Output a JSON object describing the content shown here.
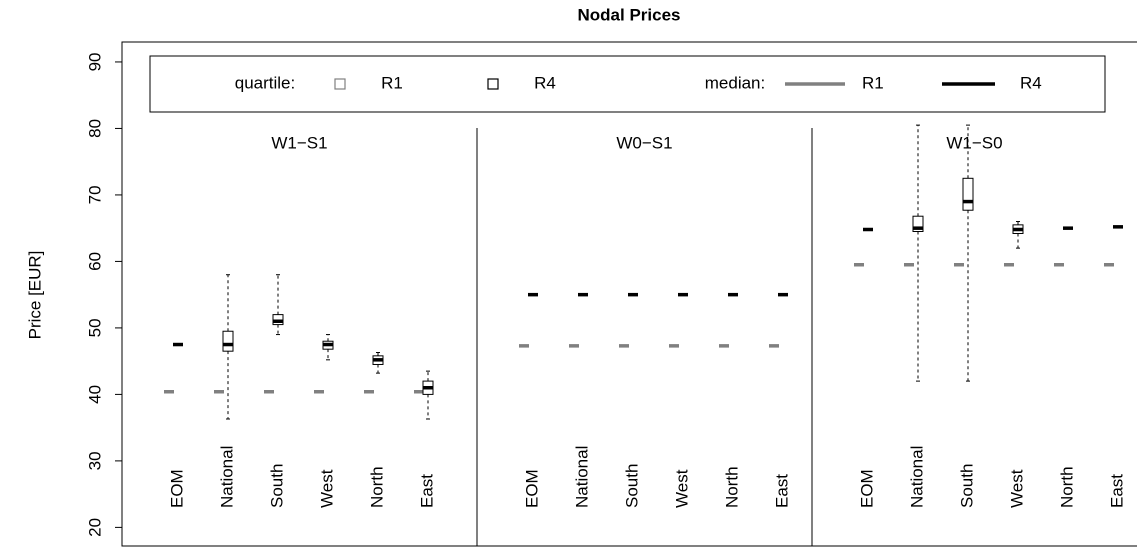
{
  "chart_data": {
    "type": "box",
    "title": "Nodal Prices",
    "ylabel": "Price [EUR]",
    "ylim": [
      17.2,
      93
    ],
    "yticks": [
      20,
      30,
      40,
      50,
      60,
      70,
      80,
      90
    ],
    "legend": {
      "quartile": "quartile:",
      "median": "median:"
    },
    "categories": [
      "EOM",
      "National",
      "South",
      "West",
      "North",
      "East"
    ],
    "series": [
      {
        "name": "R1",
        "color": "#808080"
      },
      {
        "name": "R4",
        "color": "#000000"
      }
    ],
    "panels": [
      {
        "title": "W1−S1",
        "data": [
          [
            {
              "min": 40.4,
              "q1": 40.4,
              "median": 40.4,
              "q3": 40.4,
              "max": 40.4
            },
            {
              "min": 40.4,
              "q1": 40.4,
              "median": 40.4,
              "q3": 40.4,
              "max": 40.4
            },
            {
              "min": 40.4,
              "q1": 40.4,
              "median": 40.4,
              "q3": 40.4,
              "max": 40.4
            },
            {
              "min": 40.4,
              "q1": 40.4,
              "median": 40.4,
              "q3": 40.4,
              "max": 40.4
            },
            {
              "min": 40.4,
              "q1": 40.4,
              "median": 40.4,
              "q3": 40.4,
              "max": 40.4
            },
            {
              "min": 40.4,
              "q1": 40.4,
              "median": 40.4,
              "q3": 40.4,
              "max": 40.4
            }
          ],
          [
            {
              "min": 47.5,
              "q1": 47.5,
              "median": 47.5,
              "q3": 47.5,
              "max": 47.5
            },
            {
              "min": 36.3,
              "q1": 46.5,
              "median": 47.5,
              "q3": 49.5,
              "max": 58
            },
            {
              "min": 49,
              "q1": 50.5,
              "median": 51,
              "q3": 52,
              "max": 58
            },
            {
              "min": 45.2,
              "q1": 46.8,
              "median": 47.5,
              "q3": 48,
              "max": 49
            },
            {
              "min": 43.2,
              "q1": 44.5,
              "median": 45.2,
              "q3": 45.8,
              "max": 46.3
            },
            {
              "min": 36.3,
              "q1": 40,
              "median": 41,
              "q3": 42,
              "max": 43.5
            }
          ]
        ]
      },
      {
        "title": "W0−S1",
        "data": [
          [
            {
              "min": 47.3,
              "q1": 47.3,
              "median": 47.3,
              "q3": 47.3,
              "max": 47.3
            },
            {
              "min": 47.3,
              "q1": 47.3,
              "median": 47.3,
              "q3": 47.3,
              "max": 47.3
            },
            {
              "min": 47.3,
              "q1": 47.3,
              "median": 47.3,
              "q3": 47.3,
              "max": 47.3
            },
            {
              "min": 47.3,
              "q1": 47.3,
              "median": 47.3,
              "q3": 47.3,
              "max": 47.3
            },
            {
              "min": 47.3,
              "q1": 47.3,
              "median": 47.3,
              "q3": 47.3,
              "max": 47.3
            },
            {
              "min": 47.3,
              "q1": 47.3,
              "median": 47.3,
              "q3": 47.3,
              "max": 47.3
            }
          ],
          [
            {
              "min": 55,
              "q1": 55,
              "median": 55,
              "q3": 55,
              "max": 55
            },
            {
              "min": 55,
              "q1": 55,
              "median": 55,
              "q3": 55,
              "max": 55
            },
            {
              "min": 55,
              "q1": 55,
              "median": 55,
              "q3": 55,
              "max": 55
            },
            {
              "min": 55,
              "q1": 55,
              "median": 55,
              "q3": 55,
              "max": 55
            },
            {
              "min": 55,
              "q1": 55,
              "median": 55,
              "q3": 55,
              "max": 55
            },
            {
              "min": 55,
              "q1": 55,
              "median": 55,
              "q3": 55,
              "max": 55
            }
          ]
        ]
      },
      {
        "title": "W1−S0",
        "data": [
          [
            {
              "min": 59.5,
              "q1": 59.5,
              "median": 59.5,
              "q3": 59.5,
              "max": 59.5
            },
            {
              "min": 59.5,
              "q1": 59.5,
              "median": 59.5,
              "q3": 59.5,
              "max": 59.5
            },
            {
              "min": 59.5,
              "q1": 59.5,
              "median": 59.5,
              "q3": 59.5,
              "max": 59.5
            },
            {
              "min": 59.5,
              "q1": 59.5,
              "median": 59.5,
              "q3": 59.5,
              "max": 59.5
            },
            {
              "min": 59.5,
              "q1": 59.5,
              "median": 59.5,
              "q3": 59.5,
              "max": 59.5
            },
            {
              "min": 59.5,
              "q1": 59.5,
              "median": 59.5,
              "q3": 59.5,
              "max": 59.5
            }
          ],
          [
            {
              "min": 64.8,
              "q1": 64.8,
              "median": 64.8,
              "q3": 64.8,
              "max": 64.8
            },
            {
              "min": 42,
              "q1": 64.5,
              "median": 65,
              "q3": 66.8,
              "max": 80.5
            },
            {
              "min": 42,
              "q1": 67.7,
              "median": 69,
              "q3": 72.5,
              "max": 80.5
            },
            {
              "min": 62,
              "q1": 64.2,
              "median": 64.8,
              "q3": 65.5,
              "max": 66
            },
            {
              "min": 65,
              "q1": 65,
              "median": 65,
              "q3": 65,
              "max": 65
            },
            {
              "min": 65.2,
              "q1": 65.2,
              "median": 65.2,
              "q3": 65.2,
              "max": 65.2
            }
          ]
        ]
      }
    ]
  }
}
